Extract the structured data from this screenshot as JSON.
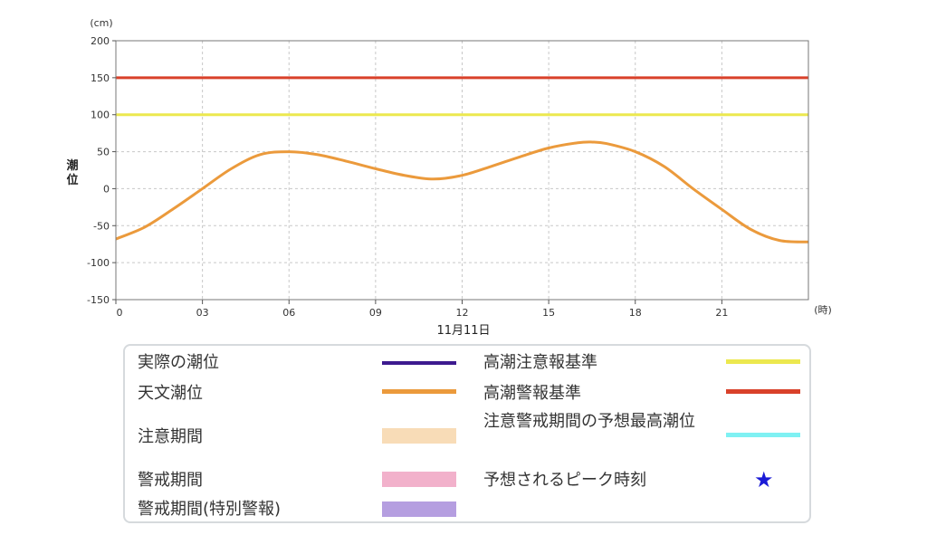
{
  "chart_data": {
    "type": "line",
    "unit_label": "(cm)",
    "ylabel": "潮位",
    "xunit_label": "(時)",
    "date_label": "11月11日",
    "ylim": [
      -150,
      200
    ],
    "yticks": [
      200,
      150,
      100,
      50,
      0,
      -50,
      -100,
      -150
    ],
    "xlim": [
      0,
      24
    ],
    "xticks": [
      0,
      3,
      6,
      9,
      12,
      15,
      18,
      21
    ],
    "xtick_labels": [
      "0",
      "03",
      "06",
      "09",
      "12",
      "15",
      "18",
      "21"
    ],
    "grid": true,
    "reference_lines": [
      {
        "name": "高潮警報基準",
        "value": 150,
        "color": "#d9412a"
      },
      {
        "name": "高潮注意報基準",
        "value": 100,
        "color": "#ece84f"
      }
    ],
    "series": [
      {
        "name": "天文潮位",
        "color": "#eb9a3c",
        "x": [
          0,
          1,
          2,
          3,
          4,
          5,
          6,
          7,
          8,
          9,
          10,
          11,
          12,
          13,
          14,
          15,
          16,
          16.5,
          17,
          18,
          19,
          20,
          21,
          22,
          23,
          24
        ],
        "y": [
          -68,
          -52,
          -27,
          0,
          27,
          46,
          50,
          46,
          37,
          27,
          18,
          13,
          18,
          30,
          43,
          55,
          62,
          63,
          61,
          50,
          30,
          0,
          -28,
          -55,
          -70,
          -72
        ]
      }
    ]
  },
  "legend": {
    "items": [
      {
        "label": "実際の潮位",
        "color": "#3d1a8f",
        "kind": "line"
      },
      {
        "label": "天文潮位",
        "color": "#eb9a3c",
        "kind": "line"
      },
      {
        "label": "注意期間",
        "color": "#f8dcb7",
        "kind": "box"
      },
      {
        "label": "警戒期間",
        "color": "#f2b1cb",
        "kind": "box"
      },
      {
        "label": "警戒期間(特別警報)",
        "color": "#b59ee0",
        "kind": "box"
      },
      {
        "label": "高潮注意報基準",
        "color": "#ece84f",
        "kind": "line"
      },
      {
        "label": "高潮警報基準",
        "color": "#d9412a",
        "kind": "line"
      },
      {
        "label": "注意警戒期間の予想最高潮位",
        "color": "#7ff1f3",
        "kind": "line"
      },
      {
        "label": "予想されるピーク時刻",
        "color": "#1a1ad6",
        "kind": "star",
        "icon": "star-icon"
      }
    ]
  }
}
